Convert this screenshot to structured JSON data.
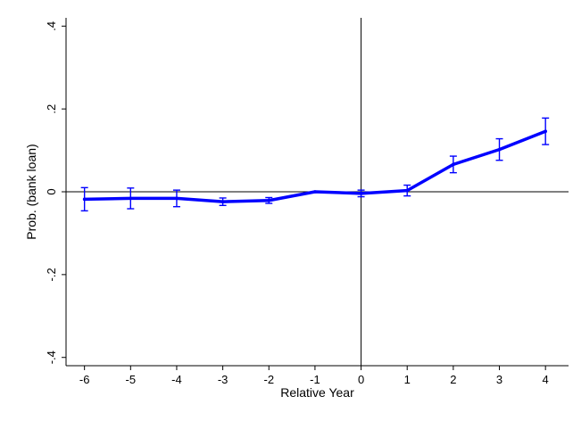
{
  "chart_data": {
    "type": "line",
    "title": "",
    "xlabel": "Relative Year",
    "ylabel": "Prob. (bank loan)",
    "xlim": [
      -6.4,
      4.5
    ],
    "ylim": [
      -0.42,
      0.42
    ],
    "x_ticks": [
      -6,
      -5,
      -4,
      -3,
      -2,
      -1,
      0,
      1,
      2,
      3,
      4
    ],
    "x_tick_labels": [
      "-6",
      "-5",
      "-4",
      "-3",
      "-2",
      "-1",
      "0",
      "1",
      "2",
      "3",
      "4"
    ],
    "y_ticks": [
      -0.4,
      -0.2,
      0,
      0.2,
      0.4
    ],
    "y_tick_labels": [
      "-.4",
      "-.2",
      "0",
      ".2",
      ".4"
    ],
    "reference_lines": {
      "y": 0,
      "x": 0
    },
    "grid": false,
    "legend": "none",
    "series": [
      {
        "x": [
          -6,
          -5,
          -4,
          -3,
          -2,
          -1,
          0,
          1,
          2,
          3,
          4
        ],
        "y": [
          -0.018,
          -0.016,
          -0.016,
          -0.024,
          -0.021,
          0.0,
          -0.004,
          0.003,
          0.066,
          0.102,
          0.146
        ],
        "ci_low": [
          -0.046,
          -0.041,
          -0.036,
          -0.033,
          -0.028,
          0.0,
          -0.012,
          -0.01,
          0.046,
          0.076,
          0.114
        ],
        "ci_high": [
          0.01,
          0.009,
          0.004,
          -0.015,
          -0.014,
          0.0,
          0.004,
          0.016,
          0.086,
          0.128,
          0.178
        ],
        "color": "#0000ff"
      }
    ]
  }
}
